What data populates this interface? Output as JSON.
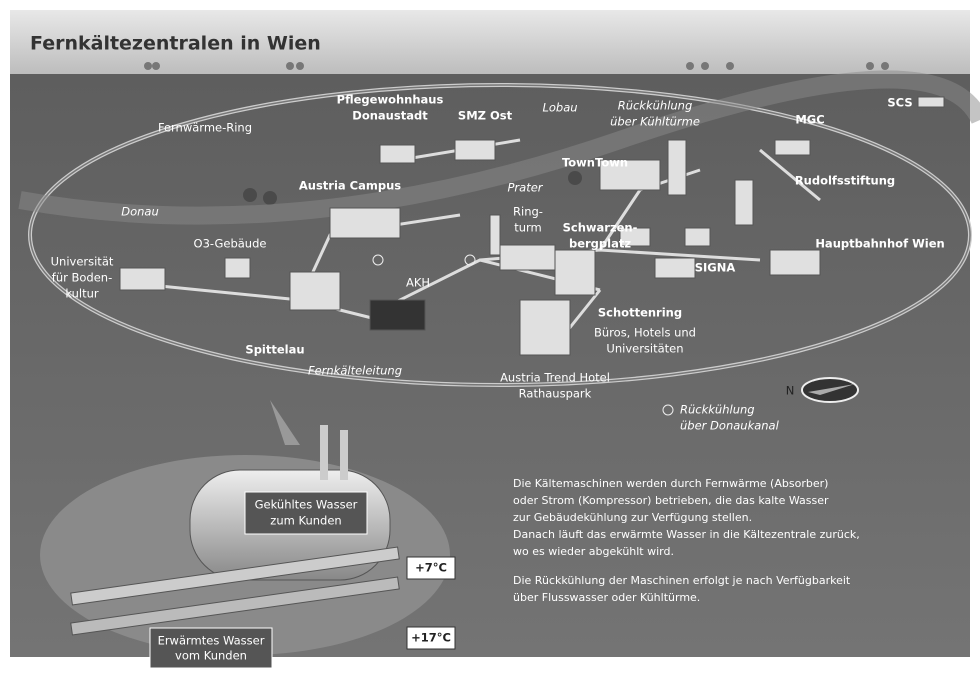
{
  "title": "Fernkältezentralen in Wien",
  "labels": [
    [
      "Fernwärme-Ring"
    ],
    [
      "Pflegewohnhaus",
      "Donaustadt"
    ],
    [
      "SMZ Ost"
    ],
    [
      "Lobau"
    ],
    [
      "Rückkühlung",
      "über Kühltürme"
    ],
    [
      "SCS"
    ],
    [
      "MGC"
    ],
    [
      "TownTown"
    ],
    [
      "Rudolfsstiftung"
    ],
    [
      "Austria Campus"
    ],
    [
      "Prater"
    ],
    [
      "Donau"
    ],
    [
      "Ring-",
      "turm"
    ],
    [
      "Schwarzen-",
      "bergplatz"
    ],
    [
      "Hauptbahnhof Wien"
    ],
    [
      "Universität",
      "für Boden-",
      "kultur"
    ],
    [
      "O3-Gebäude"
    ],
    [
      "AKH"
    ],
    [
      "SIGNA"
    ],
    [
      "Schottenring"
    ],
    [
      "Büros, Hotels und",
      "Universitäten"
    ],
    [
      "Spittelau"
    ],
    [
      "Fernkälteleitung"
    ],
    [
      "Austria Trend Hotel",
      "Rathauspark"
    ]
  ],
  "compass": "N",
  "legend": [
    "Rückkühlung",
    "über Donaukanal"
  ],
  "machine": {
    "cooled": [
      "Gekühltes Wasser",
      "zum Kunden"
    ],
    "warmed": [
      "Erwärmtes Wasser",
      "vom Kunden"
    ],
    "temp_cold": "+7°C",
    "temp_warm": "+17°C"
  },
  "description": [
    [
      "Die Kältemaschinen werden durch Fernwärme (Absorber)",
      "oder Strom (Kompressor) betrieben, die das kalte Wasser",
      "zur Gebäudekühlung zur Verfügung stellen.",
      "Danach läuft das erwärmte Wasser in die Kältezentrale zurück,",
      "wo es wieder abgekühlt wird."
    ],
    [
      "Die Rückkühlung der Maschinen erfolgt je nach Verfügbarkeit",
      "über Flusswasser oder Kühltürme."
    ]
  ]
}
